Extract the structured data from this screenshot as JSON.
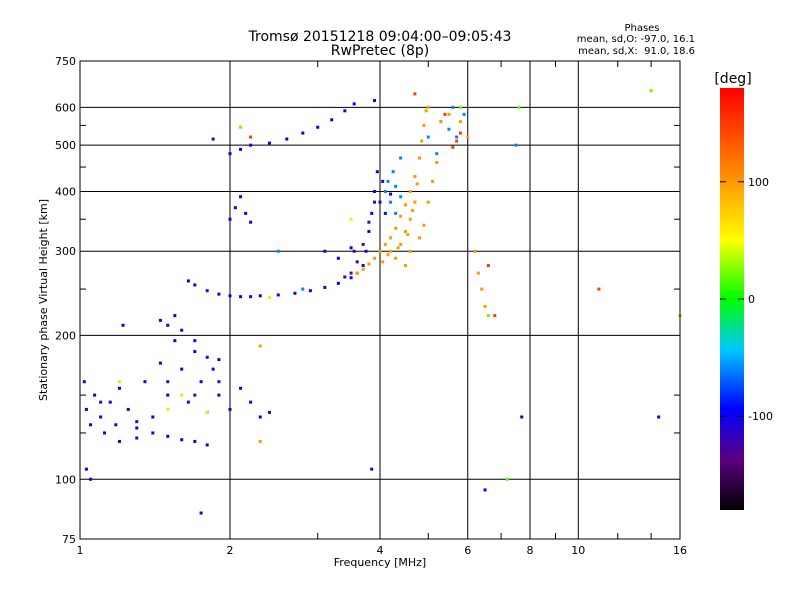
{
  "chart_data": {
    "type": "scatter",
    "title": "Tromsø 20151218 09:04:00–09:05:43",
    "subtitle": "RwPretec (8p)",
    "stats": {
      "heading": "Phases",
      "line1": "mean, sd,O: -97.0, 16.1",
      "line2": "mean, sd,X:  91.0, 18.6"
    },
    "xlabel": "Frequency [MHz]",
    "ylabel": "Stationary phase Virtual Height [km]",
    "x_scale": "log",
    "y_scale": "log",
    "xlim": [
      1,
      16
    ],
    "ylim": [
      75,
      750
    ],
    "x_ticks": [
      1,
      2,
      4,
      6,
      8,
      10,
      16
    ],
    "x_tick_labels": [
      "1",
      "2",
      "4",
      "6",
      "8",
      "10",
      "16"
    ],
    "x_grid": [
      2,
      4,
      6,
      8,
      10
    ],
    "x_minor_ticks": [
      3,
      5,
      7,
      9,
      12,
      14
    ],
    "y_ticks": [
      75,
      100,
      200,
      300,
      400,
      500,
      600,
      750
    ],
    "y_tick_labels": [
      "75",
      "100",
      "200",
      "300",
      "400",
      "500",
      "600",
      "750"
    ],
    "y_grid": [
      100,
      200,
      300,
      400,
      500,
      600
    ],
    "y_minor_ticks": [
      125,
      150,
      250,
      350,
      450,
      550
    ],
    "grid": true,
    "colorbar": {
      "label": "[deg]",
      "range": [
        -180,
        180
      ],
      "ticks": [
        100,
        0,
        -100
      ],
      "tick_labels": [
        "100",
        "0",
        "-100"
      ]
    },
    "series": [
      {
        "phase": -100,
        "points": [
          [
            1.02,
            160
          ],
          [
            1.03,
            140
          ],
          [
            1.05,
            130
          ],
          [
            1.07,
            150
          ],
          [
            1.1,
            135
          ],
          [
            1.12,
            125
          ],
          [
            1.15,
            145
          ],
          [
            1.18,
            130
          ],
          [
            1.2,
            155
          ],
          [
            1.25,
            140
          ],
          [
            1.3,
            128
          ],
          [
            1.35,
            160
          ],
          [
            1.4,
            135
          ],
          [
            1.45,
            175
          ],
          [
            1.5,
            150
          ],
          [
            1.55,
            195
          ],
          [
            1.6,
            170
          ],
          [
            1.65,
            145
          ],
          [
            1.7,
            185
          ],
          [
            1.75,
            160
          ],
          [
            1.8,
            138
          ],
          [
            1.85,
            170
          ],
          [
            1.9,
            150
          ],
          [
            2.0,
            140
          ],
          [
            2.1,
            155
          ],
          [
            2.2,
            145
          ],
          [
            2.3,
            135
          ],
          [
            1.2,
            120
          ],
          [
            1.3,
            122
          ],
          [
            1.4,
            125
          ],
          [
            1.5,
            123
          ],
          [
            1.6,
            121
          ],
          [
            1.7,
            120
          ],
          [
            1.8,
            118
          ],
          [
            1.5,
            210
          ],
          [
            1.55,
            220
          ],
          [
            1.6,
            205
          ],
          [
            1.45,
            215
          ],
          [
            1.7,
            195
          ],
          [
            1.8,
            180
          ],
          [
            1.9,
            178
          ],
          [
            1.65,
            260
          ],
          [
            1.7,
            255
          ],
          [
            1.8,
            248
          ],
          [
            1.9,
            244
          ],
          [
            2.0,
            242
          ],
          [
            2.1,
            241
          ],
          [
            2.2,
            241
          ],
          [
            2.3,
            242
          ],
          [
            2.5,
            243
          ],
          [
            2.7,
            245
          ],
          [
            2.9,
            248
          ],
          [
            3.1,
            252
          ],
          [
            3.3,
            257
          ],
          [
            3.5,
            264
          ],
          [
            3.6,
            270
          ],
          [
            3.7,
            280
          ],
          [
            3.75,
            300
          ],
          [
            3.8,
            330
          ],
          [
            3.85,
            360
          ],
          [
            3.9,
            400
          ],
          [
            3.95,
            440
          ],
          [
            2.0,
            350
          ],
          [
            2.05,
            370
          ],
          [
            2.1,
            390
          ],
          [
            2.15,
            360
          ],
          [
            2.2,
            345
          ],
          [
            2.0,
            480
          ],
          [
            2.1,
            490
          ],
          [
            2.2,
            500
          ],
          [
            2.4,
            505
          ],
          [
            2.6,
            515
          ],
          [
            2.8,
            530
          ],
          [
            3.0,
            545
          ],
          [
            3.2,
            565
          ],
          [
            3.4,
            590
          ],
          [
            3.55,
            610
          ],
          [
            1.85,
            515
          ],
          [
            3.9,
            620
          ],
          [
            4.0,
            380
          ],
          [
            4.1,
            360
          ],
          [
            4.2,
            395
          ],
          [
            4.05,
            420
          ],
          [
            3.1,
            300
          ],
          [
            3.3,
            290
          ],
          [
            3.5,
            305
          ],
          [
            1.03,
            105
          ],
          [
            1.05,
            100
          ],
          [
            3.85,
            105
          ],
          [
            1.75,
            85
          ],
          [
            1.22,
            210
          ],
          [
            7.7,
            135
          ],
          [
            14.5,
            135
          ],
          [
            6.5,
            95
          ]
        ]
      },
      {
        "phase": -130,
        "points": [
          [
            1.1,
            145
          ],
          [
            1.3,
            132
          ],
          [
            1.5,
            160
          ],
          [
            1.7,
            150
          ],
          [
            1.9,
            160
          ],
          [
            2.4,
            138
          ],
          [
            3.5,
            270
          ],
          [
            3.6,
            285
          ],
          [
            3.7,
            310
          ],
          [
            3.8,
            345
          ],
          [
            3.9,
            380
          ],
          [
            3.55,
            300
          ],
          [
            3.4,
            265
          ]
        ]
      },
      {
        "phase": -60,
        "points": [
          [
            4.1,
            400
          ],
          [
            4.2,
            380
          ],
          [
            4.3,
            360
          ],
          [
            4.15,
            420
          ],
          [
            4.25,
            440
          ],
          [
            4.3,
            410
          ],
          [
            4.4,
            390
          ],
          [
            5.3,
            560
          ],
          [
            5.5,
            540
          ],
          [
            5.7,
            520
          ],
          [
            5.9,
            580
          ],
          [
            5.6,
            600
          ],
          [
            5.2,
            480
          ],
          [
            4.4,
            470
          ],
          [
            5.0,
            520
          ],
          [
            7.5,
            500
          ],
          [
            2.5,
            300
          ],
          [
            2.8,
            250
          ]
        ]
      },
      {
        "phase": 100,
        "points": [
          [
            3.6,
            270
          ],
          [
            3.7,
            275
          ],
          [
            3.8,
            282
          ],
          [
            3.9,
            290
          ],
          [
            4.0,
            300
          ],
          [
            4.1,
            310
          ],
          [
            4.2,
            320
          ],
          [
            4.3,
            335
          ],
          [
            4.4,
            355
          ],
          [
            4.5,
            375
          ],
          [
            4.6,
            400
          ],
          [
            4.7,
            430
          ],
          [
            4.8,
            470
          ],
          [
            4.85,
            510
          ],
          [
            4.9,
            550
          ],
          [
            4.95,
            590
          ],
          [
            5.0,
            600
          ],
          [
            4.2,
            300
          ],
          [
            4.3,
            290
          ],
          [
            4.4,
            310
          ],
          [
            4.5,
            330
          ],
          [
            4.6,
            350
          ],
          [
            4.7,
            380
          ],
          [
            4.5,
            280
          ],
          [
            4.6,
            300
          ],
          [
            4.8,
            320
          ],
          [
            4.9,
            340
          ],
          [
            5.0,
            380
          ],
          [
            5.1,
            420
          ],
          [
            5.2,
            460
          ],
          [
            4.05,
            285
          ],
          [
            4.15,
            295
          ],
          [
            4.35,
            305
          ],
          [
            4.55,
            325
          ],
          [
            4.65,
            365
          ],
          [
            4.75,
            415
          ],
          [
            5.3,
            560
          ],
          [
            5.5,
            580
          ],
          [
            5.8,
            560
          ],
          [
            6.0,
            520
          ],
          [
            6.2,
            300
          ],
          [
            6.4,
            250
          ],
          [
            6.5,
            230
          ],
          [
            6.3,
            270
          ],
          [
            2.3,
            120
          ],
          [
            2.3,
            190
          ]
        ]
      },
      {
        "phase": 40,
        "points": [
          [
            1.2,
            160
          ],
          [
            1.5,
            140
          ],
          [
            1.6,
            150
          ],
          [
            1.8,
            138
          ],
          [
            2.4,
            240
          ],
          [
            3.5,
            350
          ]
        ]
      },
      {
        "phase": 150,
        "points": [
          [
            4.7,
            640
          ],
          [
            5.4,
            580
          ],
          [
            5.6,
            495
          ],
          [
            5.7,
            510
          ],
          [
            5.8,
            530
          ],
          [
            6.6,
            280
          ],
          [
            6.8,
            220
          ],
          [
            11.0,
            250
          ],
          [
            2.2,
            520
          ]
        ]
      },
      {
        "phase": 20,
        "points": [
          [
            14.0,
            650
          ],
          [
            16.0,
            220
          ],
          [
            7.6,
            600
          ],
          [
            5.8,
            600
          ],
          [
            2.1,
            545
          ],
          [
            6.6,
            220
          ],
          [
            7.2,
            100
          ]
        ]
      }
    ]
  }
}
